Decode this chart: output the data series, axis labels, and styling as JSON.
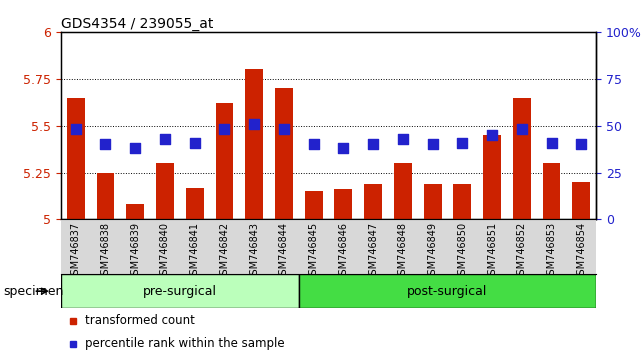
{
  "title": "GDS4354 / 239055_at",
  "samples": [
    "GSM746837",
    "GSM746838",
    "GSM746839",
    "GSM746840",
    "GSM746841",
    "GSM746842",
    "GSM746843",
    "GSM746844",
    "GSM746845",
    "GSM746846",
    "GSM746847",
    "GSM746848",
    "GSM746849",
    "GSM746850",
    "GSM746851",
    "GSM746852",
    "GSM746853",
    "GSM746854"
  ],
  "bar_values": [
    5.65,
    5.25,
    5.08,
    5.3,
    5.17,
    5.62,
    5.8,
    5.7,
    5.15,
    5.16,
    5.19,
    5.3,
    5.19,
    5.19,
    5.45,
    5.65,
    5.3,
    5.2
  ],
  "dot_values": [
    48,
    40,
    38,
    43,
    41,
    48,
    51,
    48,
    40,
    38,
    40,
    43,
    40,
    41,
    45,
    48,
    41,
    40
  ],
  "bar_color": "#cc2200",
  "dot_color": "#2222cc",
  "ylim_left": [
    5.0,
    6.0
  ],
  "ylim_right": [
    0,
    100
  ],
  "yticks_left": [
    5.0,
    5.25,
    5.5,
    5.75,
    6.0
  ],
  "yticks_right": [
    0,
    25,
    50,
    75,
    100
  ],
  "ytick_labels_left": [
    "5",
    "5.25",
    "5.5",
    "5.75",
    "6"
  ],
  "ytick_labels_right": [
    "0",
    "25",
    "50",
    "75",
    "100%"
  ],
  "gridlines": [
    5.25,
    5.5,
    5.75
  ],
  "groups": [
    {
      "label": "pre-surgical",
      "color": "#bbffbb",
      "start": 0,
      "end": 8
    },
    {
      "label": "post-surgical",
      "color": "#44dd44",
      "start": 8,
      "end": 18
    }
  ],
  "specimen_label": "specimen",
  "legend_bar": "transformed count",
  "legend_dot": "percentile rank within the sample",
  "bar_width": 0.6,
  "dot_size": 50,
  "background_color": "#ffffff",
  "plot_bg_color": "#ffffff",
  "tick_color_left": "#cc2200",
  "tick_color_right": "#2222cc",
  "xticklabel_bg": "#d8d8d8",
  "title_fontsize": 10
}
